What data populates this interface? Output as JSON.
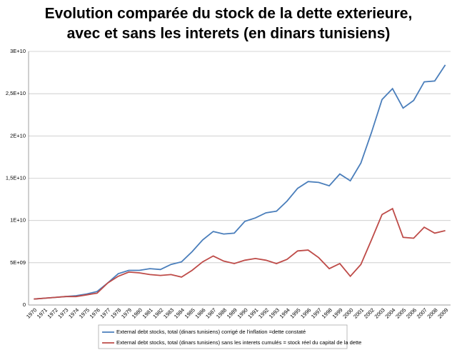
{
  "chart_data": {
    "type": "line",
    "title": [
      "Evolution comparée du stock de la dette exterieure,",
      "avec et sans les interets (en dinars tunisiens)"
    ],
    "categories": [
      "1970",
      "1971",
      "1972",
      "1973",
      "1974",
      "1975",
      "1976",
      "1977",
      "1978",
      "1979",
      "1980",
      "1981",
      "1982",
      "1983",
      "1984",
      "1985",
      "1986",
      "1987",
      "1988",
      "1989",
      "1990",
      "1991",
      "1992",
      "1993",
      "1994",
      "1995",
      "1996",
      "1997",
      "1998",
      "1999",
      "2000",
      "2001",
      "2002",
      "2003",
      "2004",
      "2005",
      "2006",
      "2007",
      "2008",
      "2009"
    ],
    "series": [
      {
        "name": "External debt stocks, total (dinars tunisiens) corrigé de l'inflation =dette constaté",
        "color": "#4a7ebb",
        "values": [
          700000000.0,
          800000000.0,
          900000000.0,
          1000000000.0,
          1100000000.0,
          1300000000.0,
          1600000000.0,
          2600000000.0,
          3700000000.0,
          4100000000.0,
          4100000000.0,
          4300000000.0,
          4200000000.0,
          4800000000.0,
          5100000000.0,
          6300000000.0,
          7700000000.0,
          8700000000.0,
          8400000000.0,
          8500000000.0,
          9900000000.0,
          10300000000.0,
          10900000000.0,
          11100000000.0,
          12300000000.0,
          13800000000.0,
          14600000000.0,
          14500000000.0,
          14100000000.0,
          15500000000.0,
          14700000000.0,
          16800000000.0,
          20400000000.0,
          24300000000.0,
          25600000000.0,
          23300000000.0,
          24200000000.0,
          26400000000.0,
          26500000000.0,
          28400000000.0
        ]
      },
      {
        "name": "External debt stocks, total (dinars tunisiens) sans les interets cumulés = stock réel du capital de la dette",
        "color": "#be4b48",
        "values": [
          700000000.0,
          800000000.0,
          900000000.0,
          1000000000.0,
          1000000000.0,
          1200000000.0,
          1400000000.0,
          2600000000.0,
          3400000000.0,
          3900000000.0,
          3800000000.0,
          3600000000.0,
          3500000000.0,
          3600000000.0,
          3300000000.0,
          4100000000.0,
          5100000000.0,
          5800000000.0,
          5200000000.0,
          4900000000.0,
          5300000000.0,
          5500000000.0,
          5300000000.0,
          4900000000.0,
          5400000000.0,
          6400000000.0,
          6500000000.0,
          5600000000.0,
          4300000000.0,
          4900000000.0,
          3400000000.0,
          4800000000.0,
          7700000000.0,
          10700000000.0,
          11400000000.0,
          8000000000.0,
          7900000000.0,
          9200000000.0,
          8500000000.0,
          8800000000.0
        ]
      }
    ],
    "ylim": [
      0,
      30000000000.0
    ],
    "yticks": [
      0,
      {
        "value": 5000000000.0,
        "label": "5E+09"
      },
      {
        "value": 10000000000.0,
        "label": "1E+10"
      },
      {
        "value": 15000000000.0,
        "label": "1,5E+10"
      },
      {
        "value": 20000000000.0,
        "label": "2E+10"
      },
      {
        "value": 25000000000.0,
        "label": "2,5E+10"
      },
      {
        "value": 30000000000.0,
        "label": "3E+10"
      }
    ],
    "grid": true,
    "legend": "bottom"
  }
}
